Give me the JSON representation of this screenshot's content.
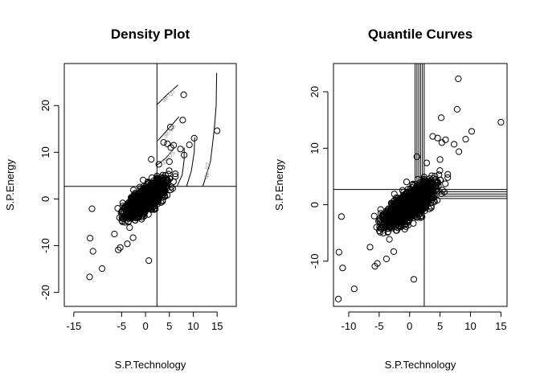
{
  "chart_data": [
    {
      "type": "scatter",
      "title": "Density Plot",
      "xlabel": "S.P.Technology",
      "ylabel": "S.P.Energy",
      "xlim": [
        -17,
        19
      ],
      "ylim": [
        -23,
        29
      ],
      "xticks": [
        -15,
        -5,
        0,
        5,
        10,
        15
      ],
      "yticks": [
        -20,
        -10,
        0,
        10,
        20
      ],
      "cross_lines": {
        "x": 2.4,
        "y": 2.7
      },
      "contours": [
        {
          "label": "4e-07",
          "points": [
            [
              2.4,
              20.2
            ],
            [
              4.5,
              22.3
            ],
            [
              6.8,
              24.4
            ]
          ]
        },
        {
          "label": "3e-06",
          "points": [
            [
              2.6,
              12.5
            ],
            [
              4.6,
              14.8
            ],
            [
              7.0,
              17.6
            ]
          ]
        },
        {
          "label": "1e-05",
          "points": [
            [
              2.5,
              7.3
            ],
            [
              4.2,
              8.7
            ],
            [
              5.8,
              10.6
            ]
          ]
        },
        {
          "label": "",
          "points": [
            [
              6.6,
              2.7
            ],
            [
              7.7,
              5.2
            ],
            [
              8.1,
              8.5
            ],
            [
              8.1,
              11.0
            ]
          ]
        },
        {
          "label": "",
          "points": [
            [
              8.6,
              2.7
            ],
            [
              9.6,
              6.0
            ],
            [
              10.2,
              10.0
            ],
            [
              10.3,
              13.2
            ]
          ]
        },
        {
          "label": "4e-07",
          "points": [
            [
              12.0,
              2.7
            ],
            [
              13.6,
              8.0
            ],
            [
              14.4,
              15.0
            ],
            [
              14.8,
              20.0
            ],
            [
              14.9,
              27.0
            ]
          ]
        }
      ]
    },
    {
      "type": "scatter",
      "title": "Quantile Curves",
      "xlabel": "S.P.Technology",
      "ylabel": "S.P.Energy",
      "xlim": [
        -12.5,
        16
      ],
      "ylim": [
        -18,
        25
      ],
      "xticks": [
        -10,
        -5,
        0,
        5,
        10,
        15
      ],
      "yticks": [
        -10,
        0,
        10,
        20
      ],
      "cross_lines": {
        "x": 2.4,
        "y": 2.7
      },
      "quantile_verticals": [
        0.9,
        1.2,
        1.5,
        1.8,
        2.1
      ],
      "quantile_horizontals": [
        1.1,
        1.5,
        1.9,
        2.3
      ]
    }
  ],
  "scatter_points": {
    "outliers": [
      [
        15.0,
        14.6
      ],
      [
        8.0,
        22.3
      ],
      [
        7.8,
        16.9
      ],
      [
        10.2,
        13.0
      ],
      [
        5.2,
        15.4
      ],
      [
        9.2,
        11.6
      ],
      [
        5.9,
        11.5
      ],
      [
        5.3,
        11.0
      ],
      [
        4.6,
        11.8
      ],
      [
        7.3,
        10.7
      ],
      [
        3.8,
        12.1
      ],
      [
        8.1,
        9.4
      ],
      [
        -11.2,
        -2.1
      ],
      [
        -11.6,
        -8.4
      ],
      [
        -11.0,
        -11.2
      ],
      [
        -9.1,
        -14.9
      ],
      [
        -11.7,
        -16.7
      ],
      [
        -5.3,
        -10.4
      ],
      [
        -5.7,
        -10.9
      ],
      [
        0.7,
        -13.2
      ],
      [
        -3.8,
        -9.6
      ],
      [
        -2.6,
        -8.3
      ],
      [
        1.2,
        8.5
      ],
      [
        2.8,
        7.4
      ],
      [
        5.0,
        8.0
      ],
      [
        -6.5,
        -7.5
      ]
    ],
    "cluster": {
      "count": 1400,
      "seed": 17
    }
  }
}
